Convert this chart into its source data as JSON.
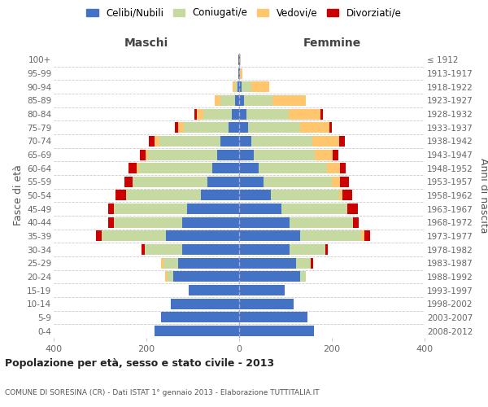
{
  "age_groups": [
    "100+",
    "95-99",
    "90-94",
    "85-89",
    "80-84",
    "75-79",
    "70-74",
    "65-69",
    "60-64",
    "55-59",
    "50-54",
    "45-49",
    "40-44",
    "35-39",
    "30-34",
    "25-29",
    "20-24",
    "15-19",
    "10-14",
    "5-9",
    "0-4"
  ],
  "birth_years": [
    "≤ 1912",
    "1913-1917",
    "1918-1922",
    "1923-1927",
    "1928-1932",
    "1933-1937",
    "1938-1942",
    "1943-1947",
    "1948-1952",
    "1953-1957",
    "1958-1962",
    "1963-1967",
    "1968-1972",
    "1973-1977",
    "1978-1982",
    "1983-1987",
    "1988-1992",
    "1993-1997",
    "1998-2002",
    "2003-2007",
    "2008-2012"
  ],
  "male": {
    "celibi": [
      1,
      1,
      4,
      8,
      15,
      22,
      40,
      48,
      58,
      68,
      82,
      112,
      122,
      158,
      122,
      132,
      142,
      108,
      148,
      168,
      182
    ],
    "coniugati": [
      0,
      0,
      5,
      32,
      62,
      98,
      132,
      148,
      158,
      162,
      162,
      158,
      148,
      138,
      82,
      32,
      12,
      0,
      0,
      0,
      0
    ],
    "vedovi": [
      0,
      0,
      5,
      12,
      14,
      12,
      10,
      6,
      5,
      0,
      0,
      0,
      0,
      0,
      0,
      5,
      5,
      0,
      0,
      0,
      0
    ],
    "divorziati": [
      0,
      0,
      0,
      0,
      6,
      6,
      12,
      12,
      18,
      18,
      22,
      12,
      12,
      12,
      6,
      0,
      0,
      0,
      0,
      0,
      0
    ]
  },
  "female": {
    "nubili": [
      1,
      2,
      5,
      10,
      15,
      20,
      26,
      32,
      42,
      52,
      68,
      92,
      108,
      132,
      108,
      122,
      132,
      98,
      118,
      148,
      162
    ],
    "coniugate": [
      0,
      0,
      22,
      62,
      92,
      112,
      132,
      132,
      148,
      148,
      148,
      142,
      138,
      132,
      78,
      32,
      12,
      0,
      0,
      0,
      0
    ],
    "vedove": [
      2,
      5,
      38,
      72,
      68,
      62,
      58,
      38,
      28,
      18,
      6,
      0,
      0,
      6,
      0,
      0,
      0,
      0,
      0,
      0,
      0
    ],
    "divorziate": [
      0,
      0,
      0,
      0,
      6,
      6,
      12,
      12,
      12,
      18,
      22,
      22,
      12,
      12,
      6,
      6,
      0,
      0,
      0,
      0,
      0
    ]
  },
  "colors": {
    "celibi": "#4472c4",
    "coniugati": "#c5d9a0",
    "vedovi": "#ffc66d",
    "divorziati": "#cc0000"
  },
  "xlim": 400,
  "title": "Popolazione per età, sesso e stato civile - 2013",
  "subtitle": "COMUNE DI SORESINA (CR) - Dati ISTAT 1° gennaio 2013 - Elaborazione TUTTITALIA.IT",
  "ylabel_left": "Fasce di età",
  "ylabel_right": "Anni di nascita",
  "xlabel_left": "Maschi",
  "xlabel_right": "Femmine",
  "legend_labels": [
    "Celibi/Nubili",
    "Coniugati/e",
    "Vedovi/e",
    "Divorziati/e"
  ],
  "bg_color": "#ffffff",
  "bar_height": 0.78,
  "grid_color": "#cccccc",
  "dashed_line_color": "#aaaacc"
}
